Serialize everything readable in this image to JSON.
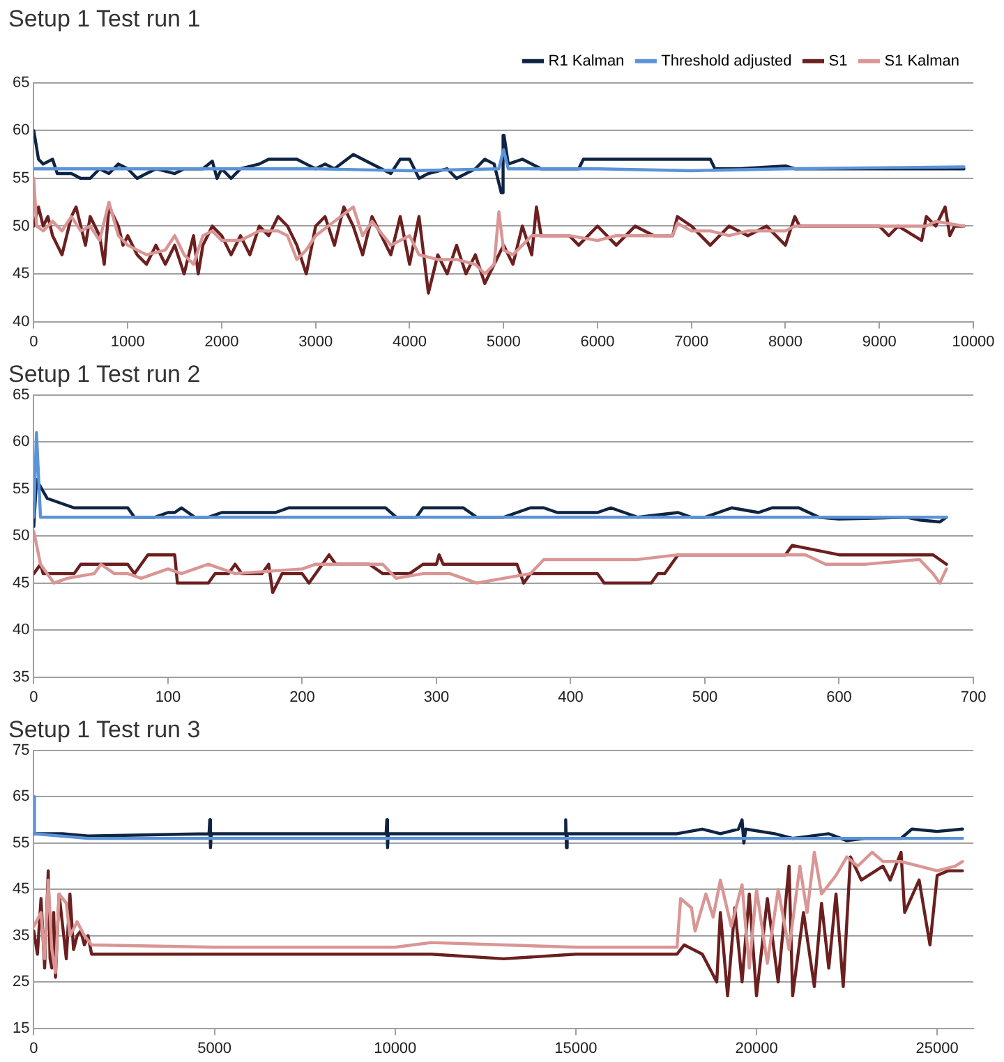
{
  "chart_data": [
    {
      "type": "line",
      "title": "Setup 1 Test run 1",
      "xlim": [
        0,
        10000
      ],
      "xticks": [
        0,
        1000,
        2000,
        3000,
        4000,
        5000,
        6000,
        7000,
        8000,
        9000,
        10000
      ],
      "ylim": [
        40,
        65
      ],
      "yticks": [
        40,
        45,
        50,
        55,
        60,
        65
      ],
      "grid": "y",
      "legend": "top right",
      "marker": "none",
      "series": [
        {
          "name": "R1 Kalman",
          "color": "#0f2442",
          "x": [
            0,
            50,
            100,
            200,
            250,
            400,
            500,
            600,
            700,
            800,
            900,
            1000,
            1100,
            1200,
            1300,
            1500,
            1600,
            1800,
            1900,
            1950,
            2000,
            2100,
            2200,
            2400,
            2500,
            2700,
            2800,
            2900,
            3000,
            3100,
            3200,
            3400,
            3500,
            3700,
            3800,
            3900,
            4000,
            4100,
            4200,
            4400,
            4500,
            4700,
            4800,
            4900,
            4975,
            4985,
            4995,
            5005,
            5050,
            5200,
            5400,
            5800,
            5850,
            6000,
            6500,
            7000,
            7200,
            7250,
            7500,
            8000,
            8100,
            9000,
            9900
          ],
          "values": [
            60,
            57,
            56.5,
            57,
            55.5,
            55.5,
            55,
            55,
            56,
            55.5,
            56.5,
            56,
            55,
            55.5,
            56,
            55.5,
            56,
            56,
            56.8,
            55,
            56,
            55,
            56,
            56.5,
            57,
            57,
            57,
            56.5,
            56,
            56.5,
            56,
            57.5,
            57,
            56,
            55.5,
            57,
            57,
            55,
            55.5,
            56,
            55,
            56,
            57,
            56.5,
            53.5,
            53.5,
            59.5,
            59.5,
            56.5,
            57,
            56,
            56,
            57,
            57,
            57,
            57,
            57,
            56,
            56,
            56.3,
            56,
            56,
            56
          ]
        },
        {
          "name": "Threshold adjusted",
          "color": "#5b93d8",
          "x": [
            0,
            1000,
            2000,
            3000,
            4000,
            4950,
            5000,
            5050,
            6000,
            7000,
            8000,
            9900
          ],
          "values": [
            56,
            56,
            56,
            56,
            55.8,
            56,
            58,
            56,
            56,
            55.8,
            56,
            56.2
          ]
        },
        {
          "name": "S1",
          "color": "#6b1f1f",
          "x": [
            0,
            50,
            100,
            150,
            200,
            300,
            400,
            450,
            500,
            550,
            600,
            700,
            750,
            800,
            900,
            950,
            1000,
            1100,
            1200,
            1300,
            1400,
            1500,
            1600,
            1700,
            1750,
            1800,
            1900,
            2000,
            2100,
            2200,
            2300,
            2400,
            2500,
            2600,
            2700,
            2800,
            2900,
            3000,
            3100,
            3200,
            3300,
            3400,
            3500,
            3600,
            3700,
            3800,
            3900,
            4000,
            4100,
            4200,
            4300,
            4400,
            4500,
            4600,
            4700,
            4800,
            4900,
            5000,
            5100,
            5200,
            5300,
            5350,
            5400,
            5700,
            5800,
            6000,
            6200,
            6400,
            6600,
            6800,
            6850,
            7000,
            7200,
            7400,
            7600,
            7800,
            8000,
            8100,
            8150,
            9000,
            9100,
            9200,
            9450,
            9500,
            9600,
            9700,
            9750,
            9800,
            9900
          ],
          "values": [
            50,
            52,
            50,
            51,
            49,
            47,
            51,
            52,
            50,
            48,
            51,
            49,
            46,
            52,
            50,
            48,
            49,
            47,
            46,
            48,
            46,
            48,
            45,
            49,
            45,
            48,
            50,
            49,
            47,
            49,
            47,
            50,
            49,
            51,
            50,
            48,
            45,
            50,
            51,
            48,
            52,
            50,
            47,
            51,
            49,
            47,
            51,
            46,
            51,
            43,
            47,
            45,
            48,
            45,
            47,
            44,
            46,
            48,
            46,
            50,
            47,
            52,
            49,
            49,
            48,
            50,
            48,
            50,
            49,
            49,
            51,
            50,
            48,
            50,
            49,
            50,
            48,
            51,
            50,
            50,
            49,
            50,
            48.5,
            51,
            50,
            52,
            49,
            50,
            50
          ]
        },
        {
          "name": "S1 Kalman",
          "color": "#d99694",
          "x": [
            0,
            30,
            100,
            200,
            300,
            400,
            500,
            600,
            700,
            800,
            900,
            1000,
            1200,
            1400,
            1500,
            1600,
            1700,
            1800,
            1900,
            2000,
            2200,
            2400,
            2600,
            2700,
            2800,
            2900,
            3000,
            3200,
            3400,
            3500,
            3600,
            3800,
            4000,
            4100,
            4300,
            4500,
            4700,
            4800,
            4900,
            4950,
            5000,
            5100,
            5300,
            5400,
            5700,
            6000,
            6200,
            6800,
            6850,
            7000,
            7200,
            7400,
            7600,
            8000,
            8100,
            9000,
            9500,
            9600,
            9900
          ],
          "values": [
            55,
            50,
            49.5,
            50.5,
            49.5,
            51,
            49.5,
            50,
            48.5,
            52.5,
            49,
            48,
            47,
            47.5,
            49,
            47,
            46,
            49,
            49.5,
            48.5,
            48.5,
            49.5,
            49.5,
            49,
            46.5,
            47.5,
            49,
            50.5,
            52,
            49,
            50.5,
            48,
            49,
            47,
            46.5,
            46.5,
            46,
            45,
            46,
            51.5,
            47.5,
            47,
            49,
            49,
            49,
            48.5,
            49,
            49,
            50.3,
            49.5,
            49.5,
            49,
            49.5,
            49.5,
            50,
            50,
            50,
            50.5,
            50
          ]
        }
      ]
    },
    {
      "type": "line",
      "title": "Setup 1 Test run 2",
      "xlim": [
        0,
        700
      ],
      "xticks": [
        0,
        100,
        200,
        300,
        400,
        500,
        600,
        700
      ],
      "ylim": [
        35,
        65
      ],
      "yticks": [
        35,
        40,
        45,
        50,
        55,
        60,
        65
      ],
      "grid": "y",
      "legend": false,
      "marker": "none",
      "series": [
        {
          "color": "#0f2442",
          "x": [
            0,
            2,
            10,
            20,
            30,
            35,
            70,
            75,
            90,
            100,
            105,
            110,
            120,
            130,
            140,
            160,
            180,
            190,
            210,
            250,
            262,
            270,
            285,
            290,
            320,
            330,
            350,
            360,
            370,
            380,
            390,
            400,
            410,
            420,
            430,
            440,
            450,
            480,
            490,
            500,
            510,
            520,
            540,
            550,
            570,
            585,
            600,
            650,
            660,
            675,
            680
          ],
          "values": [
            51,
            56,
            54,
            53.5,
            53,
            53,
            53,
            52,
            52,
            52.5,
            52.5,
            53,
            52,
            52,
            52.5,
            52.5,
            52.5,
            53,
            53,
            53,
            53,
            52,
            52,
            53,
            53,
            52,
            52,
            52.5,
            53,
            53,
            52.5,
            52.5,
            52.5,
            52.5,
            53,
            52.5,
            52,
            52.5,
            52,
            52,
            52.5,
            53,
            52.5,
            53,
            53,
            52,
            51.8,
            52,
            51.7,
            51.5,
            52
          ]
        },
        {
          "color": "#5b93d8",
          "x": [
            0,
            2,
            5,
            100,
            300,
            500,
            600,
            680
          ],
          "values": [
            52,
            61,
            52,
            52,
            52,
            52,
            52,
            52
          ]
        },
        {
          "color": "#6b1f1f",
          "x": [
            0,
            5,
            7,
            30,
            35,
            70,
            75,
            80,
            85,
            105,
            107,
            130,
            135,
            145,
            150,
            155,
            170,
            175,
            178,
            185,
            200,
            205,
            210,
            220,
            225,
            250,
            260,
            280,
            290,
            300,
            302,
            305,
            350,
            360,
            365,
            370,
            420,
            425,
            460,
            465,
            470,
            475,
            480,
            500,
            560,
            565,
            600,
            650,
            670,
            680
          ],
          "values": [
            46,
            47,
            46,
            46,
            47,
            47,
            46,
            47,
            48,
            48,
            45,
            45,
            46,
            46,
            47,
            46,
            46,
            47,
            44,
            46,
            46,
            45,
            46,
            48,
            47,
            47,
            46,
            46,
            47,
            47,
            48,
            47,
            47,
            47,
            45,
            46,
            46,
            45,
            45,
            46,
            46,
            47,
            48,
            48,
            48,
            49,
            48,
            48,
            48,
            47
          ]
        },
        {
          "color": "#d99694",
          "x": [
            0,
            5,
            15,
            25,
            45,
            50,
            60,
            70,
            80,
            100,
            110,
            130,
            150,
            200,
            210,
            260,
            270,
            290,
            310,
            330,
            350,
            370,
            380,
            400,
            450,
            480,
            550,
            575,
            590,
            620,
            660,
            670,
            675,
            680
          ],
          "values": [
            50.5,
            47,
            45,
            45.5,
            46,
            47,
            46,
            46,
            45.5,
            46.5,
            46,
            47,
            46,
            46.5,
            47,
            47,
            45.5,
            46,
            46,
            45,
            45.5,
            46,
            47.5,
            47.5,
            47.5,
            48,
            48,
            48,
            47,
            47,
            47.5,
            46,
            45,
            46.5
          ]
        }
      ]
    },
    {
      "type": "line",
      "title": "Setup 1 Test run 3",
      "xlim": [
        0,
        26000
      ],
      "xticks": [
        0,
        5000,
        10000,
        15000,
        20000,
        25000
      ],
      "ylim": [
        15,
        75
      ],
      "yticks": [
        15,
        25,
        35,
        45,
        55,
        65,
        75
      ],
      "grid": "y",
      "legend": false,
      "marker": "none",
      "series": [
        {
          "color": "#0f2442",
          "x": [
            0,
            800,
            1500,
            4850,
            4870,
            4890,
            4910,
            9750,
            9770,
            9790,
            9810,
            14700,
            14720,
            14740,
            14760,
            17800,
            18500,
            19000,
            19500,
            19600,
            19650,
            19700,
            20500,
            21000,
            22000,
            22500,
            23000,
            24000,
            24300,
            25000,
            25700
          ],
          "values": [
            57,
            57,
            56.5,
            57,
            60,
            54,
            57,
            57,
            60,
            54,
            57,
            57,
            60,
            54,
            57,
            57,
            58,
            57,
            58,
            60,
            55,
            58,
            57,
            56,
            57,
            55.5,
            56,
            56,
            58,
            57.5,
            58
          ]
        },
        {
          "color": "#5b93d8",
          "x": [
            0,
            20,
            1500,
            25700
          ],
          "values": [
            65,
            57,
            56,
            56
          ]
        },
        {
          "color": "#6b1f1f",
          "x": [
            0,
            100,
            200,
            300,
            400,
            450,
            500,
            550,
            600,
            700,
            800,
            900,
            1000,
            1100,
            1200,
            1300,
            1400,
            1500,
            1600,
            3000,
            5000,
            7000,
            9000,
            11000,
            13000,
            15000,
            17000,
            17800,
            18000,
            18500,
            18700,
            18900,
            19000,
            19200,
            19400,
            19600,
            19800,
            20000,
            20300,
            20600,
            20900,
            21000,
            21300,
            21600,
            21800,
            22000,
            22200,
            22400,
            22600,
            22900,
            23500,
            23700,
            24000,
            24100,
            24500,
            24800,
            25000,
            25300,
            25700
          ],
          "values": [
            36,
            31,
            43,
            28,
            49,
            30,
            28,
            40,
            26,
            44,
            37,
            30,
            44,
            32,
            35,
            36,
            33,
            35,
            31,
            31,
            31,
            31,
            31,
            31,
            30,
            31,
            31,
            31,
            33,
            31,
            28,
            25,
            40,
            22,
            41,
            25,
            44,
            22,
            43,
            25,
            50,
            22,
            40,
            24,
            42,
            28,
            44,
            24,
            52,
            47,
            50,
            47,
            53,
            40,
            47,
            33,
            48,
            49,
            49
          ]
        },
        {
          "color": "#d99694",
          "x": [
            0,
            200,
            300,
            400,
            500,
            600,
            700,
            900,
            1000,
            1200,
            1400,
            1600,
            5000,
            10000,
            11000,
            13000,
            15000,
            17800,
            17900,
            18200,
            18300,
            18600,
            18800,
            19000,
            19300,
            19600,
            19800,
            20000,
            20300,
            20600,
            20900,
            21200,
            21400,
            21600,
            21800,
            22200,
            22500,
            22800,
            23200,
            23500,
            24000,
            24500,
            25000,
            25500,
            25700
          ],
          "values": [
            37,
            40,
            30,
            47,
            32,
            27,
            44,
            42,
            35,
            38,
            35,
            33,
            32.5,
            32.5,
            33.5,
            33,
            32.5,
            32.5,
            43,
            41,
            36,
            44,
            39,
            47,
            37,
            46,
            28,
            45,
            29,
            45,
            32,
            50,
            40,
            53,
            44,
            48,
            52,
            50,
            53,
            51,
            51,
            50,
            49,
            50,
            51
          ]
        }
      ]
    }
  ]
}
